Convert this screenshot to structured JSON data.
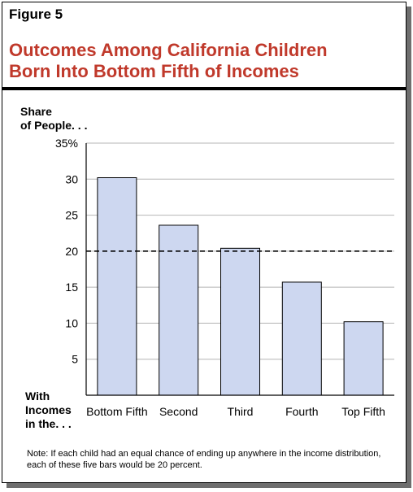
{
  "figure_label": "Figure 5",
  "title_lines": [
    "Outcomes Among California Children",
    "Born Into Bottom Fifth of Incomes"
  ],
  "y_axis_label_lines": [
    "Share",
    "of People. . ."
  ],
  "x_axis_label_lines": [
    "With",
    "Incomes",
    "in the. . ."
  ],
  "note": "Note: If each child had an equal chance of ending up anywhere in the income distribution, each of these five bars would be 20 percent.",
  "colors": {
    "title": "#c0392b",
    "bar_fill": "#cdd7f0",
    "bar_stroke": "#000000"
  },
  "chart_data": {
    "type": "bar",
    "categories": [
      "Bottom Fifth",
      "Second",
      "Third",
      "Fourth",
      "Top Fifth"
    ],
    "values": [
      30.2,
      23.6,
      20.4,
      15.7,
      10.2
    ],
    "ylim": [
      0,
      35
    ],
    "yticks": [
      5,
      10,
      15,
      20,
      25,
      30,
      35
    ],
    "ytick_labels": [
      "5",
      "10",
      "15",
      "20",
      "25",
      "30",
      "35%"
    ],
    "reference_line": {
      "value": 20,
      "style": "dashed"
    },
    "grid": true
  }
}
